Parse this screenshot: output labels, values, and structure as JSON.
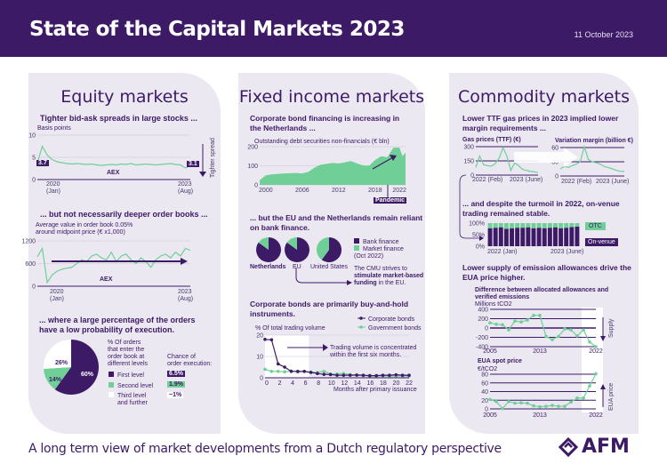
{
  "header": {
    "title": "State of the Capital Markets 2023",
    "date": "11 October 2023"
  },
  "footer": {
    "tagline": "A long term view of market developments from a Dutch regulatory perspective",
    "logo": "AFM"
  },
  "colors": {
    "purple": "#3d1a66",
    "green": "#6fcf97",
    "panel": "#ebe8f2"
  },
  "equity": {
    "title": "Equity markets",
    "s1": {
      "title": "Tighter bid-ask spreads in large stocks ...",
      "unit": "Basis points",
      "start_label": "3.7",
      "end_label": "3.1",
      "series_label": "AEX",
      "x_start": "2020",
      "x_start_sub": "(Jan)",
      "x_end": "2023",
      "x_end_sub": "(Aug)",
      "side_label": "Tighter spread"
    },
    "s2": {
      "title": "... but not necessarily deeper order books ...",
      "caption1": "Average value in order book 0.05%",
      "caption2": "around midpoint price (€ x1,000)",
      "series_label": "AEX",
      "x_start": "2020",
      "x_start_sub": "(Jan)",
      "x_end": "2023",
      "x_end_sub": "(Aug)"
    },
    "s3": {
      "title1": "... where a large percentage of the orders",
      "title2": "have a low probability of execution.",
      "legend_caption": [
        "% Of orders",
        "that enter the",
        "order book at",
        "different levels"
      ],
      "chance_caption": [
        "Chance of",
        "order execution:"
      ],
      "levels": [
        {
          "label": "First level",
          "pct": "60%",
          "chance": "6.5%"
        },
        {
          "label": "Second level",
          "pct": "14%",
          "chance": "1.9%"
        },
        {
          "label": "Third level",
          "label2": "and further",
          "pct": "26%",
          "chance": "~1%"
        }
      ]
    }
  },
  "fixed": {
    "title": "Fixed income markets",
    "s1": {
      "title1": "Corporate bond financing is increasing in",
      "title2": "the Netherlands ...",
      "caption": "Outstanding debt securities non-financials (€ bln)",
      "annotation": "Pandemic"
    },
    "s2": {
      "title1": "... but the EU and the Netherlands remain reliant",
      "title2": "on bank finance.",
      "legend": [
        "Bank finance",
        "Market finance",
        "(Oct 2022)"
      ],
      "countries": [
        "Netherlands",
        "EU",
        "United States"
      ],
      "cmu1": "The CMU strives to",
      "cmu2": "stimulate market-based",
      "cmu3": "funding",
      "cmu4": " in the EU."
    },
    "s3": {
      "title1": "Corporate bonds are primarily buy-and-hold",
      "title2": "instruments.",
      "caption": "% Of total trading volume",
      "legend": [
        "Corporate bonds",
        "Government bonds"
      ],
      "annotation1": "Trading volume is concentrated",
      "annotation2": "within the first six months.",
      "xlabel": "Months after primary issuance"
    }
  },
  "commodity": {
    "title": "Commodity markets",
    "s1": {
      "title1": "Lower TTF gas prices in 2023 implied lower",
      "title2": "margin requirements ...",
      "gas_caption": "Gas prices (TTF) (€)",
      "margin_caption": "Variation margin (billion €)",
      "x_start": "2022 (Feb)",
      "x_end": "2023 (June)"
    },
    "s2": {
      "title1": "... and despite the turmoil in 2022, on-venue",
      "title2": "trading remained stable.",
      "otc": "OTC",
      "onvenue": "On-venue",
      "x_start": "2022 (Jan)",
      "x_end": "2023 (June)"
    },
    "s3": {
      "title1": "Lower supply of emission allowances drive the",
      "title2": "EUA price higher.",
      "caption1": "Difference between allocated allowances and",
      "caption2": "verified emissions",
      "unit1": "Millions tCO2",
      "side1": "Supply",
      "caption3": "EUA spot price",
      "unit2": "€/tCO2",
      "side2": "EUA price"
    }
  },
  "chart_data": [
    {
      "id": "bidask",
      "type": "line",
      "ylabel": "Basis points",
      "ylim": [
        0,
        10
      ],
      "yticks": [
        0,
        5,
        10
      ],
      "x_range": [
        "2020-01",
        "2023-08"
      ],
      "values": [
        3.7,
        7.5,
        5.5,
        4.5,
        4,
        3.8,
        3.6,
        3.5,
        3.6,
        3.5,
        3.4,
        3.5,
        3.3,
        3.2,
        3.3,
        3.4,
        3.3,
        3.5,
        3.4,
        3.6,
        3.3,
        3.4,
        3.5,
        3.4,
        3.3,
        3.4,
        3.5,
        3.6,
        3.4,
        3.3,
        2.6,
        3.1
      ]
    },
    {
      "id": "orderbook",
      "type": "line",
      "ylim": [
        0,
        1200
      ],
      "yticks": [
        0,
        600,
        1200
      ],
      "x_range": [
        "2020-01",
        "2023-08"
      ],
      "values": [
        780,
        1000,
        100,
        300,
        400,
        450,
        480,
        500,
        600,
        700,
        650,
        800,
        850,
        750,
        700,
        900,
        650,
        800,
        850,
        700,
        600,
        750,
        650,
        500,
        700,
        800,
        850,
        750,
        900,
        800,
        1000,
        950
      ]
    },
    {
      "id": "orderpie",
      "type": "pie",
      "categories": [
        "First level",
        "Second level",
        "Third level and further"
      ],
      "values": [
        60,
        14,
        26
      ]
    },
    {
      "id": "bonds",
      "type": "area",
      "ylim": [
        0,
        200
      ],
      "yticks": [
        0,
        100,
        200
      ],
      "xticks": [
        2000,
        2006,
        2012,
        2018,
        2022
      ],
      "x": [
        1999,
        2000,
        2001,
        2003,
        2005,
        2006,
        2007,
        2008,
        2009,
        2010,
        2011,
        2012,
        2013,
        2014,
        2015,
        2016,
        2017,
        2018,
        2019,
        2020,
        2021,
        2022,
        2022.5,
        2023
      ],
      "values": [
        25,
        50,
        55,
        60,
        62,
        60,
        68,
        90,
        105,
        110,
        115,
        112,
        118,
        125,
        112,
        102,
        100,
        130,
        150,
        145,
        195,
        195,
        150,
        170
      ]
    },
    {
      "id": "financepies",
      "type": "pie",
      "categories": [
        "Netherlands",
        "EU",
        "United States"
      ],
      "series": [
        {
          "name": "Bank finance",
          "values": [
            85,
            85,
            60
          ]
        },
        {
          "name": "Market finance",
          "values": [
            15,
            15,
            40
          ]
        }
      ]
    },
    {
      "id": "tradingvolume",
      "type": "line",
      "ylim": [
        0,
        20
      ],
      "yticks": [
        0,
        10,
        20
      ],
      "x": [
        0,
        1,
        2,
        3,
        4,
        5,
        6,
        7,
        8,
        9,
        10,
        11,
        12,
        13,
        14,
        15,
        16,
        17,
        18,
        19,
        20,
        21,
        22
      ],
      "xticks": [
        0,
        2,
        4,
        6,
        8,
        10,
        12,
        14,
        16,
        18,
        20,
        22
      ],
      "series": [
        {
          "name": "Corporate bonds",
          "values": [
            18,
            17.8,
            6.5,
            5,
            3,
            3,
            3,
            2.5,
            2,
            1.6,
            1.5,
            1.2,
            1.2,
            1.2,
            1.3,
            1.2,
            1,
            1,
            1.2,
            1.2,
            1.4,
            1.2,
            1.2
          ]
        },
        {
          "name": "Government bonds",
          "values": [
            4,
            3,
            3,
            2.8,
            3.2,
            2.7,
            3,
            2.7,
            2.5,
            3,
            1.8,
            1.8,
            2,
            1.5,
            1.1,
            1,
            0.8,
            0.8,
            0.8,
            0.8,
            0.8,
            0.8,
            0.8
          ]
        }
      ]
    },
    {
      "id": "gas",
      "type": "line",
      "ylim": [
        0,
        300
      ],
      "yticks": [
        0,
        150,
        300
      ],
      "x_range": [
        "2022-02",
        "2023-06"
      ],
      "values": [
        80,
        200,
        110,
        100,
        95,
        120,
        180,
        290,
        200,
        50,
        130,
        100,
        60,
        50,
        40,
        35,
        25
      ]
    },
    {
      "id": "margin",
      "type": "line",
      "ylim": [
        0,
        60
      ],
      "yticks": [
        0,
        30,
        60
      ],
      "x_range": [
        "2022-02",
        "2023-06"
      ],
      "values": [
        15,
        20,
        18,
        22,
        25,
        30,
        62,
        35,
        30,
        28,
        25,
        20,
        18,
        15,
        12,
        10,
        10
      ]
    },
    {
      "id": "venue",
      "type": "bar",
      "stacked": true,
      "ylim": [
        0,
        100
      ],
      "yticks": [
        "0%",
        "50%",
        "100%"
      ],
      "series": [
        {
          "name": "On-venue",
          "values": [
            78,
            80,
            82,
            75,
            78,
            80,
            80,
            82,
            78,
            80,
            78,
            80,
            82,
            78,
            80,
            83,
            85
          ]
        },
        {
          "name": "OTC",
          "values": [
            22,
            20,
            18,
            25,
            22,
            20,
            20,
            18,
            22,
            20,
            22,
            20,
            18,
            22,
            20,
            17,
            15
          ]
        }
      ]
    },
    {
      "id": "emissions",
      "type": "line",
      "ylim": [
        -400,
        400
      ],
      "yticks": [
        -400,
        -200,
        0,
        200,
        400
      ],
      "xticks": [
        2005,
        2013,
        2022
      ],
      "x_start": 2005,
      "values": [
        110,
        80,
        70,
        -40,
        150,
        130,
        170,
        270,
        270,
        -180,
        -250,
        -180,
        -20,
        -40,
        -170,
        -40,
        -300,
        -400
      ]
    },
    {
      "id": "eua",
      "type": "line",
      "ylim": [
        0,
        80
      ],
      "yticks": [
        0,
        20,
        40,
        60,
        80
      ],
      "xticks": [
        2005,
        2013,
        2022
      ],
      "x_start": 2005,
      "values": [
        22,
        17,
        1,
        17,
        13,
        14,
        13,
        7,
        5,
        6,
        8,
        6,
        6,
        16,
        25,
        25,
        53,
        81
      ]
    }
  ]
}
